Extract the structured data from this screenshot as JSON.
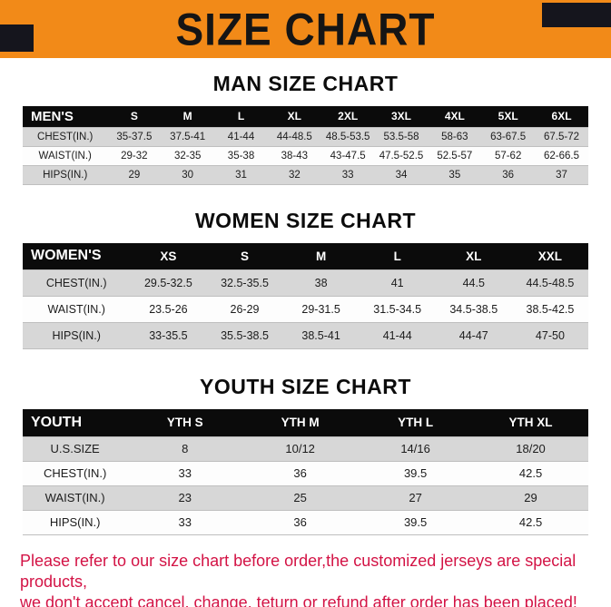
{
  "banner": {
    "title": "SIZE CHART",
    "bg_color": "#f28a18",
    "text_color": "#151515"
  },
  "sections": [
    {
      "heading": "MAN SIZE CHART",
      "table": {
        "header": [
          "MEN'S",
          "S",
          "M",
          "L",
          "XL",
          "2XL",
          "3XL",
          "4XL",
          "5XL",
          "6XL"
        ],
        "rows": [
          [
            "CHEST(IN.)",
            "35-37.5",
            "37.5-41",
            "41-44",
            "44-48.5",
            "48.5-53.5",
            "53.5-58",
            "58-63",
            "63-67.5",
            "67.5-72"
          ],
          [
            "WAIST(IN.)",
            "29-32",
            "32-35",
            "35-38",
            "38-43",
            "43-47.5",
            "47.5-52.5",
            "52.5-57",
            "57-62",
            "62-66.5"
          ],
          [
            "HIPS(IN.)",
            "29",
            "30",
            "31",
            "32",
            "33",
            "34",
            "35",
            "36",
            "37"
          ]
        ]
      }
    },
    {
      "heading": "WOMEN SIZE CHART",
      "table": {
        "header": [
          "WOMEN'S",
          "XS",
          "S",
          "M",
          "L",
          "XL",
          "XXL"
        ],
        "rows": [
          [
            "CHEST(IN.)",
            "29.5-32.5",
            "32.5-35.5",
            "38",
            "41",
            "44.5",
            "44.5-48.5"
          ],
          [
            "WAIST(IN.)",
            "23.5-26",
            "26-29",
            "29-31.5",
            "31.5-34.5",
            "34.5-38.5",
            "38.5-42.5"
          ],
          [
            "HIPS(IN.)",
            "33-35.5",
            "35.5-38.5",
            "38.5-41",
            "41-44",
            "44-47",
            "47-50"
          ]
        ]
      }
    },
    {
      "heading": "YOUTH SIZE CHART",
      "table": {
        "header": [
          "YOUTH",
          "YTH S",
          "YTH M",
          "YTH L",
          "YTH XL"
        ],
        "rows": [
          [
            "U.S.SIZE",
            "8",
            "10/12",
            "14/16",
            "18/20"
          ],
          [
            "CHEST(IN.)",
            "33",
            "36",
            "39.5",
            "42.5"
          ],
          [
            "WAIST(IN.)",
            "23",
            "25",
            "27",
            "29"
          ],
          [
            "HIPS(IN.)",
            "33",
            "36",
            "39.5",
            "42.5"
          ]
        ]
      }
    }
  ],
  "footer": {
    "line1": "Please refer to our size chart before order,the customized jerseys are special products,",
    "line2": "we don't accept cancel, change, teturn or refund after order has been placed!",
    "text_color": "#d31345"
  },
  "colors": {
    "table_header_bg": "#0b0b0b",
    "row_stripe": "#d7d7d7",
    "corner_block": "#15151d"
  }
}
